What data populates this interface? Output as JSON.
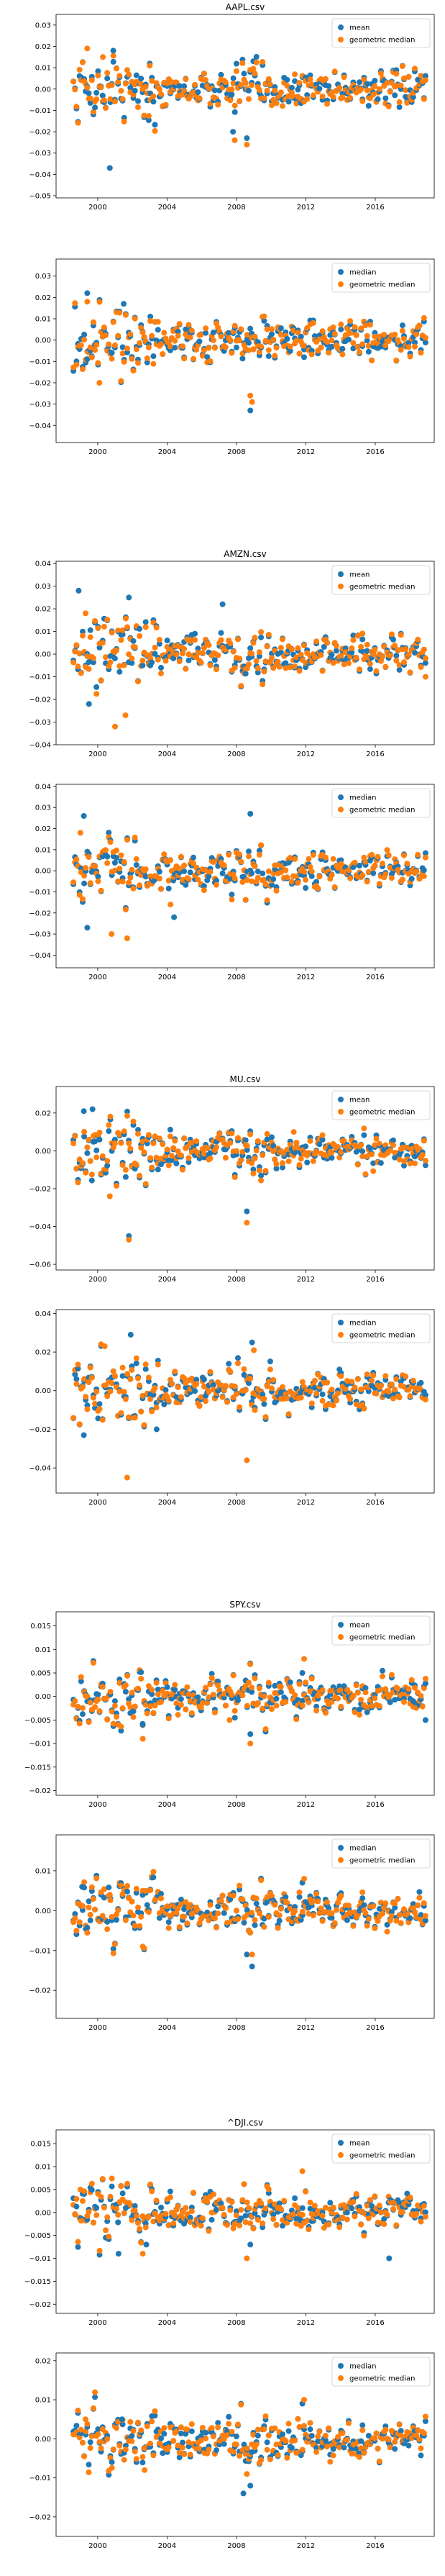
{
  "colors": {
    "series1": "#1f77b4",
    "series2": "#ff7f0e"
  },
  "chart_data": [
    {
      "type": "scatter",
      "title": "AAPL.csv",
      "xlim": [
        1997.6,
        2019.4
      ],
      "ylim": [
        -0.051,
        0.035
      ],
      "xticks": [
        2000,
        2004,
        2008,
        2012,
        2016
      ],
      "yticks": [
        -0.05,
        -0.04,
        -0.03,
        -0.02,
        -0.01,
        0.0,
        0.01,
        0.02,
        0.03
      ],
      "legend": "top-right",
      "series": [
        {
          "name": "mean",
          "x": [
            2000.7,
            2000.9,
            2003.0,
            2007.8,
            2008.6
          ],
          "y": [
            -0.037,
            0.018,
            0.012,
            -0.02,
            -0.023
          ]
        },
        {
          "name": "geometric median",
          "x": [
            1999.4,
            2000.3,
            2003.0,
            2007.9,
            2008.6
          ],
          "y": [
            0.019,
            0.015,
            0.011,
            -0.024,
            -0.026
          ]
        }
      ]
    },
    {
      "type": "scatter",
      "title": "",
      "xlim": [
        1997.6,
        2019.4
      ],
      "ylim": [
        -0.048,
        0.038
      ],
      "xticks": [
        2000,
        2004,
        2008,
        2012,
        2016
      ],
      "yticks": [
        -0.04,
        -0.03,
        -0.02,
        -0.01,
        0.0,
        0.01,
        0.02,
        0.03
      ],
      "legend": "top-right",
      "series": [
        {
          "name": "median",
          "x": [
            1999.4,
            2001.5,
            2008.8,
            2011.9
          ],
          "y": [
            0.022,
            0.017,
            -0.033,
            -0.008
          ]
        },
        {
          "name": "geometric median",
          "x": [
            1999.4,
            2000.1,
            2008.8,
            2008.9
          ],
          "y": [
            0.018,
            -0.02,
            -0.026,
            -0.029
          ]
        }
      ]
    },
    {
      "type": "scatter",
      "title": "AMZN.csv",
      "xlim": [
        1997.6,
        2019.4
      ],
      "ylim": [
        -0.04,
        0.041
      ],
      "xticks": [
        2000,
        2004,
        2008,
        2012,
        2016
      ],
      "yticks": [
        -0.04,
        -0.03,
        -0.02,
        -0.01,
        0.0,
        0.01,
        0.02,
        0.03,
        0.04
      ],
      "legend": "top-right",
      "series": [
        {
          "name": "mean",
          "x": [
            1998.9,
            2001.8,
            2007.2,
            1999.5
          ],
          "y": [
            0.028,
            0.025,
            0.022,
            -0.022
          ]
        },
        {
          "name": "geometric median",
          "x": [
            1999.3,
            2001.0,
            2001.6,
            2018.9
          ],
          "y": [
            0.018,
            -0.032,
            -0.027,
            -0.01
          ]
        }
      ]
    },
    {
      "type": "scatter",
      "title": "",
      "xlim": [
        1997.6,
        2019.4
      ],
      "ylim": [
        -0.046,
        0.041
      ],
      "xticks": [
        2000,
        2004,
        2008,
        2012,
        2016
      ],
      "yticks": [
        -0.04,
        -0.03,
        -0.02,
        -0.01,
        0.0,
        0.01,
        0.02,
        0.03,
        0.04
      ],
      "legend": "top-right",
      "series": [
        {
          "name": "median",
          "x": [
            1999.2,
            1999.4,
            2004.4,
            2008.8
          ],
          "y": [
            0.026,
            -0.027,
            -0.022,
            0.027
          ]
        },
        {
          "name": "geometric median",
          "x": [
            1999.0,
            2001.7,
            2000.8,
            2004.2
          ],
          "y": [
            0.018,
            -0.032,
            -0.03,
            -0.016
          ]
        }
      ]
    },
    {
      "type": "scatter",
      "title": "MU.csv",
      "xlim": [
        1997.6,
        2019.4
      ],
      "ylim": [
        -0.063,
        0.034
      ],
      "xticks": [
        2000,
        2004,
        2008,
        2012,
        2016
      ],
      "yticks": [
        -0.06,
        -0.04,
        -0.02,
        0.0,
        0.02
      ],
      "legend": "top-right",
      "series": [
        {
          "name": "mean",
          "x": [
            1999.2,
            1999.7,
            2001.8,
            2008.6
          ],
          "y": [
            0.021,
            0.022,
            -0.045,
            -0.032
          ]
        },
        {
          "name": "geometric median",
          "x": [
            2000.7,
            2001.8,
            2008.6,
            2011.3
          ],
          "y": [
            -0.024,
            -0.047,
            -0.038,
            0.01
          ]
        }
      ]
    },
    {
      "type": "scatter",
      "title": "",
      "xlim": [
        1997.6,
        2019.4
      ],
      "ylim": [
        -0.053,
        0.042
      ],
      "xticks": [
        2000,
        2004,
        2008,
        2012,
        2016
      ],
      "yticks": [
        -0.04,
        -0.02,
        0.0,
        0.02,
        0.04
      ],
      "legend": "top-right",
      "series": [
        {
          "name": "median",
          "x": [
            2001.9,
            2008.9,
            1999.2,
            2003.4
          ],
          "y": [
            0.029,
            0.025,
            -0.023,
            -0.02
          ]
        },
        {
          "name": "geometric median",
          "x": [
            2001.7,
            2008.6,
            2009.0,
            2000.4
          ],
          "y": [
            -0.045,
            -0.036,
            0.021,
            0.023
          ]
        }
      ]
    },
    {
      "type": "scatter",
      "title": "SPY.csv",
      "xlim": [
        1997.6,
        2019.4
      ],
      "ylim": [
        -0.021,
        0.018
      ],
      "xticks": [
        2000,
        2004,
        2008,
        2012,
        2016
      ],
      "yticks": [
        -0.02,
        -0.015,
        -0.01,
        -0.005,
        0.0,
        0.005,
        0.01,
        0.015
      ],
      "legend": "top-right",
      "series": [
        {
          "name": "mean",
          "x": [
            2008.8,
            2002.6,
            2011.8,
            2018.9
          ],
          "y": [
            -0.008,
            -0.006,
            0.005,
            -0.005
          ]
        },
        {
          "name": "geometric median",
          "x": [
            2002.6,
            2008.8,
            2011.9,
            2007.6
          ],
          "y": [
            -0.009,
            -0.01,
            0.008,
            -0.005
          ]
        }
      ]
    },
    {
      "type": "scatter",
      "title": "",
      "xlim": [
        1997.6,
        2019.4
      ],
      "ylim": [
        -0.027,
        0.019
      ],
      "xticks": [
        2000,
        2004,
        2008,
        2012,
        2016
      ],
      "yticks": [
        -0.02,
        -0.01,
        0.0,
        0.01
      ],
      "legend": "top-right",
      "series": [
        {
          "name": "median",
          "x": [
            2008.6,
            2008.9,
            1999.1,
            2011.8
          ],
          "y": [
            -0.011,
            -0.014,
            0.006,
            0.007
          ]
        },
        {
          "name": "geometric median",
          "x": [
            2002.6,
            2008.9,
            2011.9,
            2000.7
          ],
          "y": [
            -0.009,
            -0.011,
            0.008,
            0.004
          ]
        }
      ]
    },
    {
      "type": "scatter",
      "title": "^DJI.csv",
      "xlim": [
        1997.6,
        2019.4
      ],
      "ylim": [
        -0.022,
        0.018
      ],
      "xticks": [
        2000,
        2004,
        2008,
        2012,
        2016
      ],
      "yticks": [
        -0.02,
        -0.015,
        -0.01,
        -0.005,
        0.0,
        0.005,
        0.01,
        0.015
      ],
      "legend": "top-right",
      "series": [
        {
          "name": "mean",
          "x": [
            2001.2,
            2002.8,
            2008.8,
            2016.8
          ],
          "y": [
            -0.009,
            -0.007,
            -0.007,
            -0.01
          ]
        },
        {
          "name": "geometric median",
          "x": [
            2011.8,
            2002.6,
            2008.6,
            1999.0
          ],
          "y": [
            0.009,
            -0.009,
            -0.01,
            0.005
          ]
        }
      ]
    },
    {
      "type": "scatter",
      "title": "",
      "xlim": [
        1997.6,
        2019.4
      ],
      "ylim": [
        -0.025,
        0.022
      ],
      "xticks": [
        2000,
        2004,
        2008,
        2012,
        2016
      ],
      "yticks": [
        -0.02,
        -0.01,
        0.0,
        0.01,
        0.02
      ],
      "legend": "top-right",
      "series": [
        {
          "name": "median",
          "x": [
            2008.4,
            2008.8,
            2011.8,
            2001.4
          ],
          "y": [
            -0.014,
            -0.012,
            0.009,
            0.005
          ]
        },
        {
          "name": "geometric median",
          "x": [
            2011.9,
            2002.7,
            2008.6,
            1999.3
          ],
          "y": [
            0.01,
            -0.008,
            -0.009,
            0.005
          ]
        }
      ]
    }
  ]
}
